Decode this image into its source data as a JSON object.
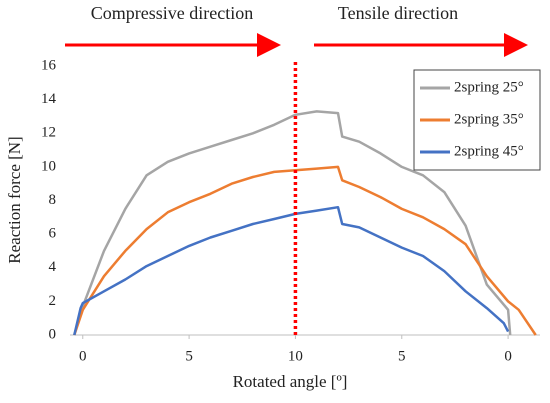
{
  "chart_data": {
    "type": "line",
    "annotations": [
      "Compressive direction",
      "Tensile direction"
    ],
    "xlabel": "Rotated angle [º]",
    "ylabel": "Reaction force [N]",
    "xlim": [
      -0.6,
      21.5
    ],
    "ylim": [
      0,
      16
    ],
    "xticks": [
      0,
      5,
      10,
      {
        "value": 15,
        "label": "5"
      },
      {
        "value": 20,
        "label": "0"
      }
    ],
    "yticks": [
      0,
      2,
      4,
      6,
      8,
      10,
      12,
      14,
      16
    ],
    "legend": "upper right",
    "vline": {
      "x": 10,
      "color": "#ff0000"
    },
    "series": [
      {
        "name": "2spring 25°",
        "color": "#a5a5a5",
        "x": [
          -0.4,
          0,
          1,
          2,
          3,
          4,
          5,
          6,
          7,
          8,
          9,
          10,
          11,
          12,
          12.2,
          13,
          14,
          15,
          16,
          17,
          18,
          19,
          20,
          20.1
        ],
        "values": [
          0,
          1.7,
          5,
          7.5,
          9.5,
          10.3,
          10.8,
          11.2,
          11.6,
          12,
          12.5,
          13.1,
          13.3,
          13.2,
          11.8,
          11.5,
          10.8,
          10,
          9.5,
          8.5,
          6.5,
          3,
          1.5,
          0
        ]
      },
      {
        "name": "2spring 35°",
        "color": "#ed7d31",
        "x": [
          -0.4,
          0,
          1,
          2,
          3,
          4,
          5,
          6,
          7,
          8,
          9,
          10,
          11,
          12,
          12.2,
          13,
          14,
          15,
          16,
          17,
          18,
          19,
          20,
          20.5,
          21.3
        ],
        "values": [
          0,
          1.5,
          3.5,
          5,
          6.3,
          7.3,
          7.9,
          8.4,
          9,
          9.4,
          9.7,
          9.8,
          9.9,
          10,
          9.2,
          8.8,
          8.2,
          7.5,
          7,
          6.3,
          5.4,
          3.5,
          2,
          1.5,
          0
        ]
      },
      {
        "name": "2spring 45°",
        "color": "#4472c4",
        "x": [
          -0.4,
          -0.1,
          0,
          1,
          2,
          3,
          4,
          5,
          6,
          7,
          8,
          9,
          10,
          11,
          12,
          12.2,
          13,
          14,
          15,
          16,
          17,
          18,
          19,
          19.8,
          20
        ],
        "values": [
          0,
          1.6,
          1.9,
          2.6,
          3.3,
          4.1,
          4.7,
          5.3,
          5.8,
          6.2,
          6.6,
          6.9,
          7.2,
          7.4,
          7.6,
          6.6,
          6.4,
          5.8,
          5.2,
          4.7,
          3.8,
          2.6,
          1.6,
          0.7,
          0.2
        ]
      }
    ]
  }
}
